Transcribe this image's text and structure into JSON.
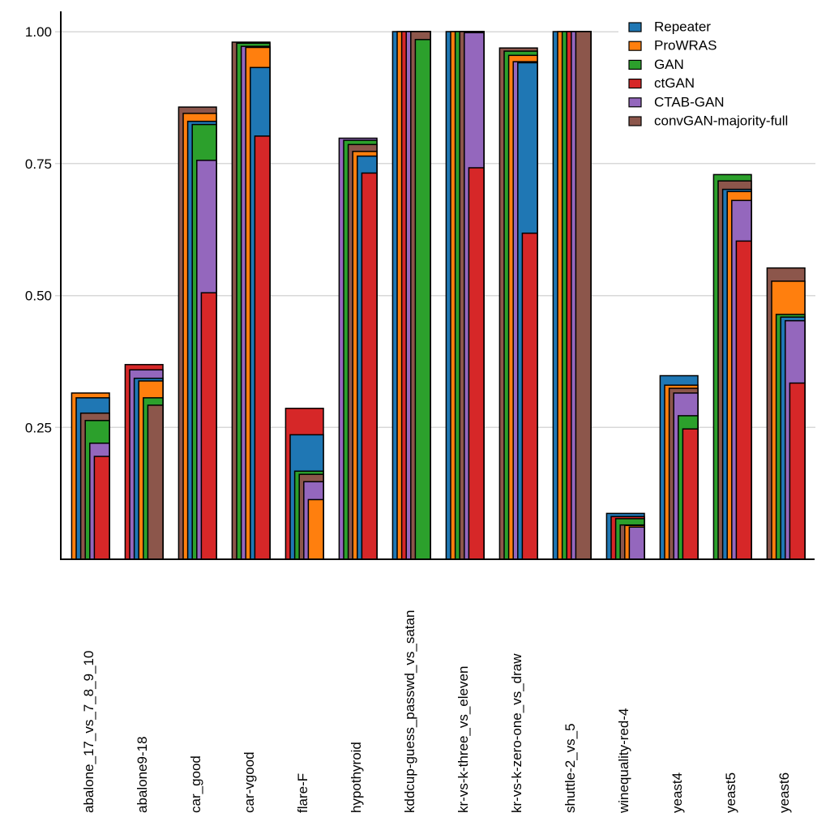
{
  "figure": {
    "background": "#ffffff",
    "title": ""
  },
  "chart_data": {
    "type": "bar",
    "variant": "overlapping_nested_bars_sorted_desc_right_aligned",
    "title": "",
    "xlabel": "",
    "ylabel": "",
    "ylim": [
      0,
      1.03
    ],
    "ytick_labels": [
      "1.00",
      "0.75",
      "0.50",
      "0.25"
    ],
    "ytick_values": [
      1.0,
      0.75,
      0.5,
      0.25
    ],
    "grid": "horizontal",
    "legend_position": "top-right",
    "gridline_color": "#d8d8d8",
    "axis_color": "#000000",
    "bar_edge_color": "#000000",
    "text_color": "#000000",
    "categories": [
      "abalone_17_vs_7_8_9_10",
      "abalone9-18",
      "car_good",
      "car-vgood",
      "flare-F",
      "hypothyroid",
      "kddcup-guess_passwd_vs_satan",
      "kr-vs-k-three_vs_eleven",
      "kr-vs-k-zero-one_vs_draw",
      "shuttle-2_vs_5",
      "winequality-red-4",
      "yeast4",
      "yeast5",
      "yeast6"
    ],
    "series": [
      {
        "name": "Repeater",
        "color": "#1f77b4",
        "values": [
          0.306,
          0.343,
          0.83,
          0.932,
          0.236,
          0.764,
          1.0,
          1.0,
          0.941,
          1.0,
          0.087,
          0.348,
          0.701,
          0.459
        ]
      },
      {
        "name": "ProWRAS",
        "color": "#ff7f0e",
        "values": [
          0.315,
          0.338,
          0.845,
          0.97,
          0.113,
          0.773,
          1.0,
          1.0,
          0.955,
          1.0,
          0.064,
          0.33,
          0.697,
          0.527
        ]
      },
      {
        "name": "GAN",
        "color": "#2ca02c",
        "values": [
          0.263,
          0.306,
          0.824,
          0.978,
          0.167,
          0.794,
          0.985,
          1.0,
          0.963,
          1.0,
          0.077,
          0.272,
          0.729,
          0.464
        ]
      },
      {
        "name": "ctGAN",
        "color": "#d62728",
        "values": [
          0.195,
          0.369,
          0.505,
          0.802,
          0.286,
          0.732,
          1.0,
          0.742,
          0.618,
          1.0,
          0.081,
          0.247,
          0.603,
          0.334
        ]
      },
      {
        "name": "CTAB-GAN",
        "color": "#9467bd",
        "values": [
          0.22,
          0.359,
          0.756,
          0.972,
          0.147,
          0.798,
          1.0,
          0.998,
          0.943,
          1.0,
          0.061,
          0.315,
          0.68,
          0.452
        ]
      },
      {
        "name": "convGAN-majority-full",
        "color": "#8c564b",
        "values": [
          0.277,
          0.292,
          0.857,
          0.98,
          0.161,
          0.786,
          1.0,
          1.0,
          0.969,
          1.0,
          0.065,
          0.324,
          0.717,
          0.552
        ]
      }
    ]
  }
}
